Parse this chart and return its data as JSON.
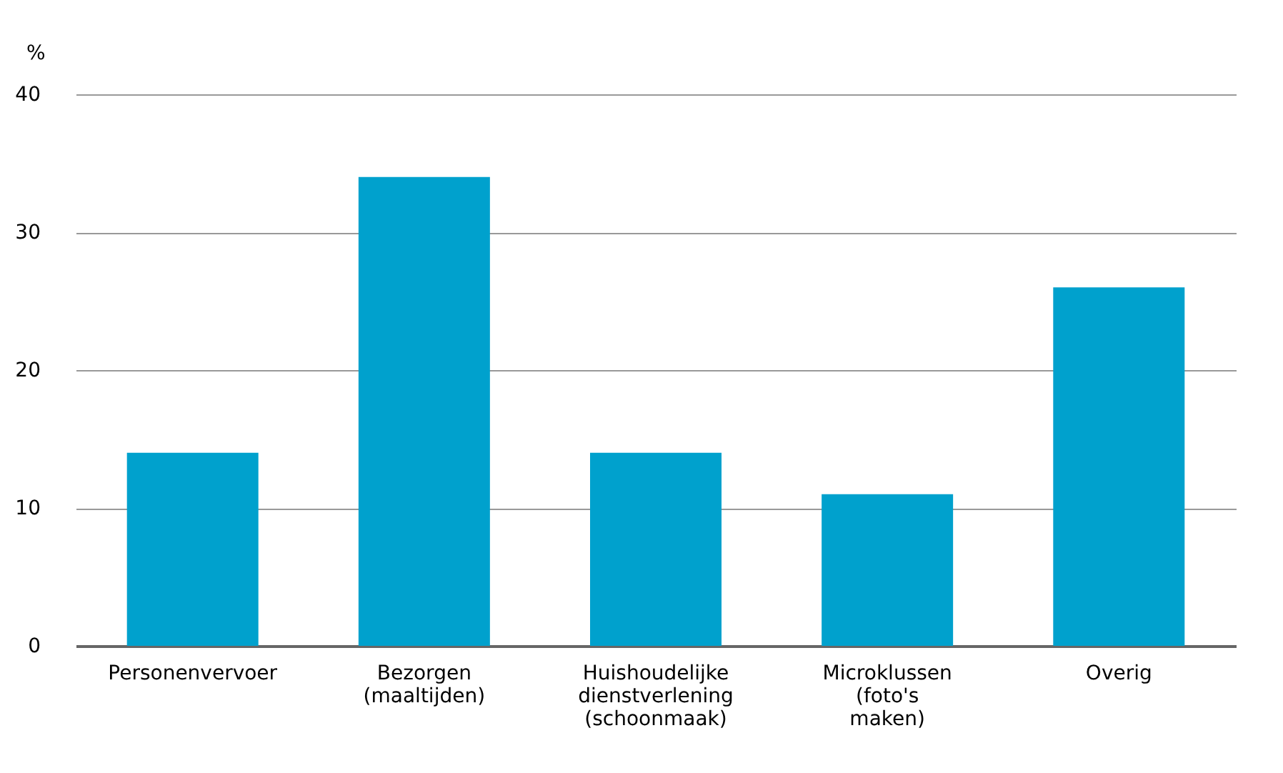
{
  "chart_data": {
    "type": "bar",
    "ylabel": "%",
    "categories": [
      "Personenvervoer",
      "Bezorgen (maaltijden)",
      "Huishoudelijke dienstverlening (schoonmaak)",
      "Microklussen (foto's maken)",
      "Overig"
    ],
    "values": [
      14,
      34,
      14,
      11,
      26
    ],
    "color": "#00a1cd",
    "ylim": [
      0,
      40
    ],
    "yticks": [
      0,
      10,
      20,
      30,
      40
    ],
    "grid": "y"
  }
}
